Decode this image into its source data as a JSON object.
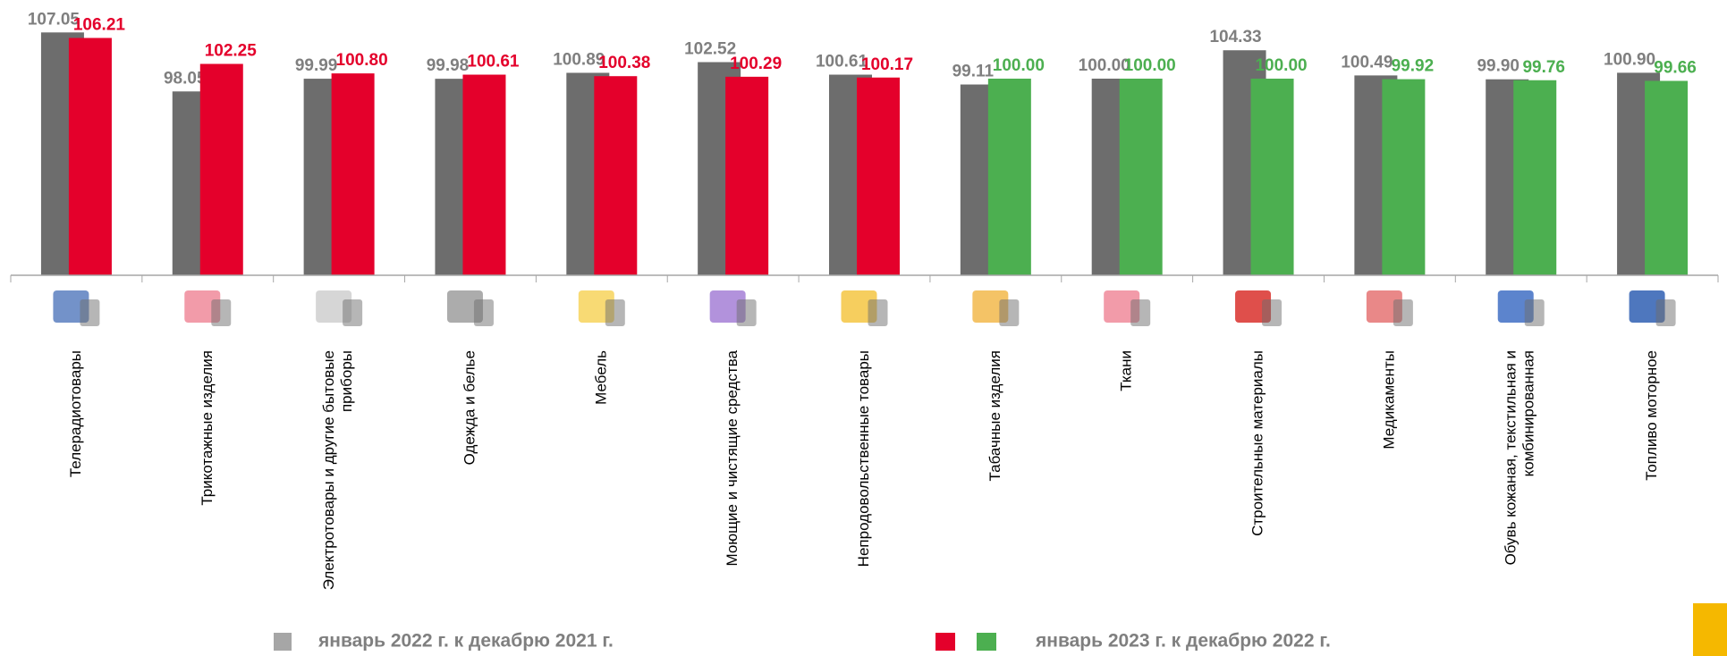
{
  "chart_data": {
    "type": "bar",
    "categories": [
      "Телерадиотовары",
      "Трикотажные изделия",
      "Электротовары и другие бытовые приборы",
      "Одежда и белье",
      "Мебель",
      "Моющие и чистящие средства",
      "Непродовольственные товары",
      "Табачные изделия",
      "Ткани",
      "Строительные материалы",
      "Медикаменты",
      "Обувь кожаная, текстильная и комбинированная",
      "Топливо моторное"
    ],
    "series": [
      {
        "name": "январь 2022 г. к декабрю 2021 г.",
        "color": "#6d6d6d",
        "label_color": "#7f7f7f",
        "values": [
          107.05,
          98.05,
          99.99,
          99.98,
          100.89,
          102.52,
          100.61,
          99.11,
          100.0,
          104.33,
          100.49,
          99.9,
          100.9
        ],
        "value_labels": [
          "107.05",
          "98.05",
          "99.99",
          "99.98",
          "100.89",
          "102.52",
          "100.61",
          "99.11",
          "100.00",
          "104.33",
          "100.49",
          "99.90",
          "100.90"
        ]
      },
      {
        "name": "январь 2023 г. к декабрю 2022 г.",
        "colors": [
          "#e4002b",
          "#e4002b",
          "#e4002b",
          "#e4002b",
          "#e4002b",
          "#e4002b",
          "#e4002b",
          "#4caf50",
          "#4caf50",
          "#4caf50",
          "#4caf50",
          "#4caf50",
          "#4caf50"
        ],
        "legend_colors": [
          "#e4002b",
          "#4caf50"
        ],
        "values": [
          106.21,
          102.25,
          100.8,
          100.61,
          100.38,
          100.29,
          100.17,
          100.0,
          100.0,
          100.0,
          99.92,
          99.76,
          99.66
        ],
        "value_labels": [
          "106.21",
          "102.25",
          "100.80",
          "100.61",
          "100.38",
          "100.29",
          "100.17",
          "100.00",
          "100.00",
          "100.00",
          "99.92",
          "99.76",
          "99.66"
        ]
      }
    ],
    "ylim": [
      70,
      112
    ]
  }
}
